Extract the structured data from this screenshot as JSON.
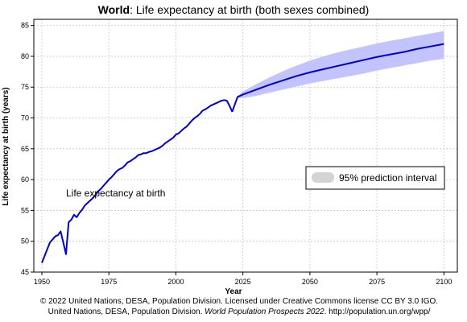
{
  "title": {
    "bold": "World",
    "rest": ": Life expectancy at birth (both sexes combined)"
  },
  "colors": {
    "line": "#0000cc",
    "band": "#c3c3ff",
    "legend_swatch": "#d4d4d4",
    "grid": "#c8c8c8"
  },
  "chart_data": {
    "type": "line",
    "title": "World: Life expectancy at birth (both sexes combined)",
    "xlabel": "Year",
    "ylabel": "Life expectancy at birth (years)",
    "xlim": [
      1947,
      2105
    ],
    "ylim": [
      45,
      86
    ],
    "xticks": [
      1950,
      1975,
      2000,
      2025,
      2050,
      2075,
      2100
    ],
    "yticks": [
      45,
      50,
      55,
      60,
      65,
      70,
      75,
      80,
      85
    ],
    "grid": true,
    "series_label": "Life expectancy at birth",
    "series": [
      {
        "kind": "estimate",
        "x": [
          1950,
          1951,
          1952,
          1953,
          1954,
          1955,
          1956,
          1957,
          1958,
          1959,
          1960,
          1961,
          1962,
          1963,
          1964,
          1965,
          1966,
          1967,
          1968,
          1969,
          1970,
          1971,
          1972,
          1973,
          1974,
          1975,
          1976,
          1977,
          1978,
          1979,
          1980,
          1981,
          1982,
          1983,
          1984,
          1985,
          1986,
          1987,
          1988,
          1989,
          1990,
          1991,
          1992,
          1993,
          1994,
          1995,
          1996,
          1997,
          1998,
          1999,
          2000,
          2001,
          2002,
          2003,
          2004,
          2005,
          2006,
          2007,
          2008,
          2009,
          2010,
          2011,
          2012,
          2013,
          2014,
          2015,
          2016,
          2017,
          2018,
          2019,
          2020,
          2021
        ],
        "values": [
          46.5,
          47.6,
          48.7,
          49.8,
          50.3,
          50.8,
          51.0,
          51.6,
          49.8,
          47.9,
          53.1,
          53.5,
          54.3,
          53.9,
          54.6,
          55.1,
          55.8,
          56.2,
          56.6,
          57.0,
          57.5,
          58.1,
          58.5,
          59.0,
          59.5,
          60.0,
          60.4,
          60.9,
          61.4,
          61.7,
          61.9,
          62.3,
          62.8,
          63.0,
          63.3,
          63.6,
          64.0,
          64.1,
          64.3,
          64.3,
          64.5,
          64.6,
          64.8,
          65.0,
          65.2,
          65.5,
          65.9,
          66.2,
          66.5,
          66.8,
          67.3,
          67.5,
          67.9,
          68.3,
          68.6,
          69.1,
          69.6,
          70.0,
          70.3,
          70.7,
          71.2,
          71.4,
          71.7,
          72.0,
          72.2,
          72.4,
          72.6,
          72.8,
          72.9,
          72.8,
          72.0,
          71.0
        ]
      },
      {
        "kind": "projection",
        "x": [
          2021,
          2022,
          2023,
          2025,
          2030,
          2035,
          2040,
          2045,
          2050,
          2055,
          2060,
          2065,
          2070,
          2075,
          2080,
          2085,
          2090,
          2095,
          2100
        ],
        "values": [
          71.0,
          72.2,
          73.4,
          73.8,
          74.6,
          75.4,
          76.1,
          76.8,
          77.4,
          77.9,
          78.4,
          78.9,
          79.4,
          79.9,
          80.3,
          80.7,
          81.2,
          81.6,
          82.0
        ]
      }
    ],
    "interval": {
      "name": "95% prediction interval",
      "x": [
        2023,
        2025,
        2030,
        2035,
        2040,
        2045,
        2050,
        2055,
        2060,
        2065,
        2070,
        2075,
        2080,
        2085,
        2090,
        2095,
        2100
      ],
      "lower": [
        73.3,
        73.2,
        73.6,
        74.1,
        74.6,
        75.1,
        75.6,
        76.0,
        76.4,
        76.8,
        77.2,
        77.7,
        78.1,
        78.5,
        78.9,
        79.3,
        79.6
      ],
      "upper": [
        73.6,
        74.3,
        75.5,
        76.6,
        77.6,
        78.5,
        79.3,
        80.0,
        80.6,
        81.1,
        81.6,
        82.1,
        82.5,
        82.9,
        83.3,
        83.7,
        84.1
      ]
    },
    "legend": {
      "entries": [
        "95% prediction interval"
      ],
      "placement": "right"
    }
  },
  "credits": {
    "line1": "© 2022 United Nations, DESA, Population Division. Licensed under Creative Commons license CC BY 3.0 IGO.",
    "line2_prefix": "United Nations, DESA, Population Division. ",
    "line2_italic": "World Population Prospects 2022",
    "line2_suffix": ". http://population.un.org/wpp/"
  }
}
